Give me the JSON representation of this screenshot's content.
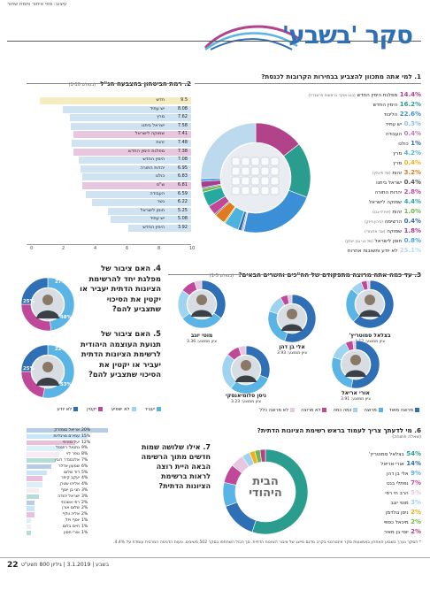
{
  "header": {
    "credits": "עיצוב: ספי איתור ותמת שחור",
    "title": "סקר 'בשבע'"
  },
  "q1": {
    "title": "1. למי אתה מתכוון להצביע בבחירות הקרובות לכנסת?",
    "items": [
      {
        "value": "14.4%",
        "label": "מפלגת הימין החדש",
        "note": "(בנט ושקד בראשות פרשבדל)",
        "color": "#b2428a"
      },
      {
        "value": "16.2%",
        "label": "הימין החדש",
        "note": "",
        "color": "#2a9d8f"
      },
      {
        "value": "22.6%",
        "label": "הליכוד",
        "note": "",
        "color": "#3a8fd6"
      },
      {
        "value": "0.3%",
        "label": "יש עתיד",
        "note": "",
        "color": "#8bc1e8"
      },
      {
        "value": "0.4%",
        "label": "העבודה",
        "note": "",
        "color": "#c07ab0"
      },
      {
        "value": "1%",
        "label": "כולנו",
        "note": "",
        "color": "#2f6fb5"
      },
      {
        "value": "4.2%",
        "label": "מרץ",
        "note": "",
        "color": "#4ab3e0"
      },
      {
        "value": "0.4%",
        "label": "מרץ",
        "note": "",
        "color": "#f0b020"
      },
      {
        "value": "3.2%",
        "label": "זהות",
        "note": "(של פייגלין)",
        "color": "#e07a20"
      },
      {
        "value": "0.4%",
        "label": "ישראל ביתנו",
        "note": "",
        "color": "#555"
      },
      {
        "value": "2.8%",
        "label": "יהדות התורה",
        "note": "",
        "color": "#c0489a"
      },
      {
        "value": "4.4%",
        "label": "שמוקה לישראל",
        "note": "",
        "color": "#27a9a0"
      },
      {
        "value": "1.0%",
        "label": "זהות",
        "note": "(יאירלי-נבו)",
        "color": "#6fb84a"
      },
      {
        "value": "0.4%",
        "label": "הרשימה",
        "note": "(בירון פינק)",
        "color": "#3a6bb0"
      },
      {
        "value": "1.8%",
        "label": "שמוקה",
        "note": "(אבי אלעזרי)",
        "color": "#a63c8c"
      },
      {
        "value": "0.8%",
        "label": "חוסן לישראל",
        "note": "(של בני גנץ יעלון)",
        "color": "#4aa0e0"
      },
      {
        "value": "25.1%",
        "label": "לא יודע ותשובות אחרות",
        "note": "",
        "color": "#bcd9ee"
      }
    ]
  },
  "q2": {
    "title": "2. רמת הביטחון בהצבעה הנ\"ל",
    "subtitle": "(בסולם 1-10)",
    "axis_ticks": [
      "0",
      "2",
      "4",
      "6",
      "8",
      "10"
    ],
    "bars": [
      {
        "name": "חדש",
        "value": 9.5,
        "label": "9.5",
        "color": "#f5ecc2"
      },
      {
        "name": "יש עתיד",
        "value": 8.08,
        "label": "8.08",
        "color": "#cfe3f3"
      },
      {
        "name": "מרץ",
        "value": 7.62,
        "label": "7.62",
        "color": "#cfe3f3"
      },
      {
        "name": "ישראל ביתנו",
        "value": 7.58,
        "label": "7.58",
        "color": "#cfe3f3"
      },
      {
        "name": "שמוקה לישראל",
        "value": 7.41,
        "label": "7.41",
        "color": "#e7c7e0"
      },
      {
        "name": "זהות",
        "value": 7.48,
        "label": "7.48",
        "color": "#cfe3f3"
      },
      {
        "name": "מפלגת הימין החדש",
        "value": 7.38,
        "label": "7.38",
        "color": "#e7c7e0"
      },
      {
        "name": "הימין החדש",
        "value": 7.08,
        "label": "7.08",
        "color": "#cfe3f3"
      },
      {
        "name": "יהדות התורה",
        "value": 6.95,
        "label": "6.95",
        "color": "#cfe3f3"
      },
      {
        "name": "כולנו",
        "value": 6.83,
        "label": "6.83",
        "color": "#cfe3f3"
      },
      {
        "name": "ש\"ס",
        "value": 6.81,
        "label": "6.81",
        "color": "#e7c7e0"
      },
      {
        "name": "העבודה",
        "value": 6.59,
        "label": "6.59",
        "color": "#cfe3f3"
      },
      {
        "name": "גשר",
        "value": 6.22,
        "label": "6.22",
        "color": "#cfe3f3"
      },
      {
        "name": "חוסן לישראל",
        "value": 5.25,
        "label": "5.25",
        "color": "#cfe3f3"
      },
      {
        "name": "יש עתיד",
        "value": 5.08,
        "label": "5.08",
        "color": "#cfe3f3"
      },
      {
        "name": "הימין החדש",
        "value": 3.92,
        "label": "3.92",
        "color": "#cfe3f3"
      }
    ]
  },
  "q3": {
    "title": "3. עד כמה אתה מרוצה מתפקודם של חה\"כים והשרים הבאים?",
    "subtitle": "(בסולם 1-5)",
    "people": [
      {
        "name": "בצלאל סמוטריץ'",
        "score": "ציון ממוצע: 4.12"
      },
      {
        "name": "אלי בן דהן",
        "score": "ציון ממוצע: 3.93"
      },
      {
        "name": "מוטי יוגב",
        "score": "ציון ממוצע: 3.36"
      },
      {
        "name": "אורי אריאל",
        "score": "ציון ממוצע: 3.91"
      },
      {
        "name": "ניסן סלומיאנסקי",
        "score": "ציון ממוצע: 3.23"
      }
    ],
    "legend": [
      "מרוצה מאוד",
      "מרוצה",
      "כמה כמה",
      "לא מרוצה",
      "לא מרוצה כלל"
    ],
    "legend_colors": [
      "#2f6fb5",
      "#5bb4e6",
      "#9fd3ef",
      "#c0489a",
      "#e7c7e0"
    ]
  },
  "q4": {
    "title": "4. האם ציבור של מפלגת יחד להרשימת הציונות הדתית יעביר או יקטין את הסיכוי שתצביע להם?",
    "pct_a": "25%",
    "pct_b": "27%",
    "pct_c": "48%"
  },
  "q5": {
    "title": "5. האם ציבור של תנועת העוצמה היהודית לרשימת הציונות הדתית יעביר או יקטין את הסיכוי שתצביע להם?",
    "pct_a": "25%",
    "pct_b": "22%",
    "pct_c": "53%"
  },
  "q45_legend": [
    "יעביר",
    "לא ישפיע",
    "יקטין",
    "לא יודע"
  ],
  "q45_legend_colors": [
    "#5bb4e6",
    "#9fd3ef",
    "#c0489a",
    "#2f6fb5"
  ],
  "q6": {
    "title": "6. מי לדעתך צריך לעמוד בראש רשימת הציונות הדתית?",
    "subtitle": "(שאלה פתוחה)",
    "items": [
      {
        "value": "54%",
        "label": "בצלאל סמוטריץ'",
        "color": "#2a9d8f"
      },
      {
        "value": "14%",
        "label": "אורי אריאל",
        "color": "#2f6fb5"
      },
      {
        "value": "9%",
        "label": "אלי בן דהן",
        "color": "#5bb4e6"
      },
      {
        "value": "7%",
        "label": "נפתלי בנט",
        "color": "#c0489a"
      },
      {
        "value": "5%",
        "label": "הרב חי רפי",
        "color": "#e7c7e0"
      },
      {
        "value": "3%",
        "label": "מוטי יוגב",
        "color": "#9fd3ef"
      },
      {
        "value": "2%",
        "label": "ניסן גולדמן",
        "color": "#f0b020"
      },
      {
        "value": "2%",
        "label": "מיכאל כספי",
        "color": "#6fb84a"
      },
      {
        "value": "2%",
        "label": "יוסי בן מאיר",
        "color": "#b2428a"
      }
    ],
    "logo_line1": "הבית",
    "logo_line2": "היהודי"
  },
  "q7": {
    "title": "7. אילו שלושה שמות חדשים מתוך הרשימה הבאה היית רוצה לראות ברשימת הציונות הדתית?",
    "bars": [
      {
        "name": "אריאל סומזרק",
        "value": 20,
        "label": "20%"
      },
      {
        "name": "עמירם מרגליות",
        "value": 15,
        "label": "15%"
      },
      {
        "name": "יעל מזרחי",
        "value": 12,
        "label": "12%"
      },
      {
        "name": "נתנאל רוזנטל",
        "value": 9,
        "label": "9%"
      },
      {
        "name": "נופר לוי",
        "value": 8,
        "label": "8%"
      },
      {
        "name": "אלכסנדר רובין",
        "value": 7,
        "label": "7%"
      },
      {
        "name": "שמעון אדלר",
        "value": 6,
        "label": "6%"
      },
      {
        "name": "דוד שלום",
        "value": 5,
        "label": "5%"
      },
      {
        "name": "יעקב קיפר",
        "value": 4,
        "label": "4%"
      },
      {
        "name": "אליהו שטרן",
        "value": 4,
        "label": "4%"
      },
      {
        "name": "חגי בן יוסף",
        "value": 3,
        "label": "3%"
      },
      {
        "name": "ישראל יהודה",
        "value": 3,
        "label": "3%"
      },
      {
        "name": "רפי אשכנזי",
        "value": 2,
        "label": "2%"
      },
      {
        "name": "שלום אורן",
        "value": 2,
        "label": "2%"
      },
      {
        "name": "אליה וולף",
        "value": 2,
        "label": "2%"
      },
      {
        "name": "יוסף ויזל",
        "value": 1,
        "label": "1%"
      },
      {
        "name": "חיים בלום",
        "value": 1,
        "label": "1%"
      },
      {
        "name": "אורי חסון",
        "value": 1,
        "label": "1%"
      }
    ]
  },
  "footnote": "* הסקר נערך בשבוע האחרון באמצעות סקר אינטרנטי בקרב מדגם מייצג של ציבור הציונות הדתית. סך הכול השתתפו בסקר 502 משיבים. טעות הדגימה המרבית עומדת על 4.4%.",
  "footer": {
    "page_number": "22",
    "publication": "בשבע | 3.1.2019 | גיליון 800 תשע\"ט"
  }
}
